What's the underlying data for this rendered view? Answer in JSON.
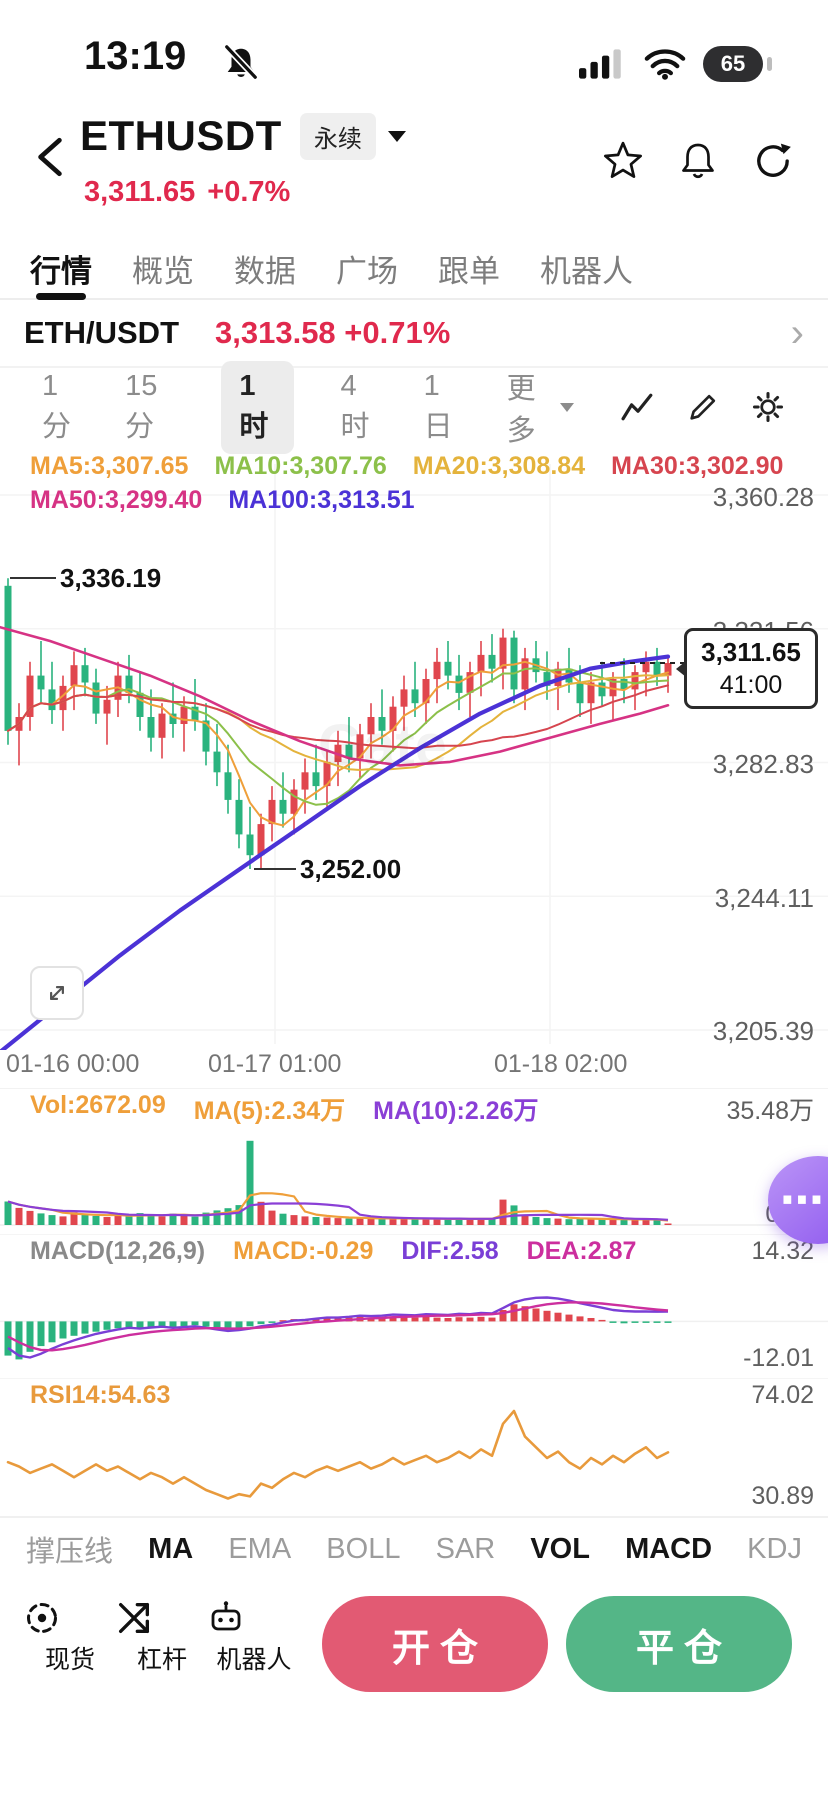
{
  "status_bar": {
    "time": "13:19",
    "battery_level": "65"
  },
  "header": {
    "symbol": "ETHUSDT",
    "contract_badge": "永续",
    "price": "3,311.65",
    "change": "+0.7%"
  },
  "nav_tabs": [
    {
      "label": "行情",
      "active": true
    },
    {
      "label": "概览"
    },
    {
      "label": "数据"
    },
    {
      "label": "广场"
    },
    {
      "label": "跟单"
    },
    {
      "label": "机器人"
    }
  ],
  "ticker": {
    "pair": "ETH/USDT",
    "price": "3,313.58",
    "change": "+0.71%"
  },
  "timeframe_bar": {
    "options": [
      {
        "label": "1分"
      },
      {
        "label": "15分"
      },
      {
        "label": "1时",
        "active": true
      },
      {
        "label": "4时"
      },
      {
        "label": "1日"
      }
    ],
    "more": "更多"
  },
  "ma_labels": {
    "row1": [
      {
        "text": "MA5:3,307.65",
        "color": "#ef9f3a"
      },
      {
        "text": "MA10:3,307.76",
        "color": "#8cc04a"
      },
      {
        "text": "MA20:3,308.84",
        "color": "#e4b33c"
      },
      {
        "text": "MA30:3,302.90",
        "color": "#d6454f"
      }
    ],
    "row2": [
      {
        "text": "MA50:3,299.40",
        "color": "#d63384"
      },
      {
        "text": "MA100:3,313.51",
        "color": "#4b32d6"
      }
    ]
  },
  "price_axis": [
    "3,360.28",
    "3,321.56",
    "3,282.83",
    "3,244.11",
    "3,205.39"
  ],
  "price_tag": {
    "price": "3,311.65",
    "countdown": "41:00"
  },
  "annotations": {
    "high": "3,336.19",
    "low": "3,252.00"
  },
  "x_axis": [
    "01-16 00:00",
    "01-17 01:00",
    "01-18 02:00"
  ],
  "watermark": "Gate",
  "volume_pane": {
    "vol_label": "Vol:2672.09",
    "ma5_label": "MA(5):2.34万",
    "ma10_label": "MA(10):2.26万",
    "max_label": "35.48万",
    "min_label": "0.00"
  },
  "macd_pane": {
    "title": "MACD(12,26,9)",
    "macd_label": "MACD:-0.29",
    "dif_label": "DIF:2.58",
    "dea_label": "DEA:2.87",
    "max_label": "14.32",
    "min_label": "-12.01"
  },
  "rsi_pane": {
    "label": "RSI14:54.63",
    "max_label": "74.02",
    "min_label": "30.89"
  },
  "indicator_tabs": [
    {
      "label": "撑压线"
    },
    {
      "label": "MA",
      "active": true
    },
    {
      "label": "EMA"
    },
    {
      "label": "BOLL"
    },
    {
      "label": "SAR"
    },
    {
      "label": "VOL",
      "active": true
    },
    {
      "label": "MACD",
      "active": true
    },
    {
      "label": "KDJ"
    }
  ],
  "bottom_bar": {
    "items": [
      {
        "label": "现货"
      },
      {
        "label": "杠杆"
      },
      {
        "label": "机器人"
      }
    ],
    "open_label": "开仓",
    "close_label": "平仓"
  },
  "colors": {
    "up": "#e0464e",
    "down": "#2ab37e",
    "price_red": "#e0294d",
    "ma5": "#ef9f3a",
    "ma10": "#8cc04a",
    "ma20": "#e4b33c",
    "ma30": "#d6454f",
    "ma50": "#d63384",
    "ma100": "#4b32d6",
    "vol_ma5": "#ef9f3a",
    "vol_ma10": "#8a3fd6",
    "dif": "#7a3fd6",
    "dea": "#cc2f9e",
    "rsi": "#e89a3c"
  },
  "chart_data": {
    "type": "candlestick",
    "timeframe": "1h",
    "last_price": 3311.65,
    "y_axis": [
      3360.28,
      3321.56,
      3282.83,
      3244.11,
      3205.39
    ],
    "x_labels": [
      "01-16 00:00",
      "01-17 01:00",
      "01-18 02:00"
    ],
    "candles": [
      [
        3334,
        3336.19,
        3288,
        3292
      ],
      [
        3292,
        3300,
        3282,
        3296
      ],
      [
        3296,
        3312,
        3292,
        3308
      ],
      [
        3308,
        3318,
        3300,
        3304
      ],
      [
        3304,
        3312,
        3294,
        3298
      ],
      [
        3298,
        3308,
        3292,
        3305
      ],
      [
        3305,
        3315,
        3298,
        3311
      ],
      [
        3311,
        3316,
        3302,
        3306
      ],
      [
        3306,
        3310,
        3294,
        3297
      ],
      [
        3297,
        3305,
        3288,
        3301
      ],
      [
        3301,
        3312,
        3296,
        3308
      ],
      [
        3308,
        3314,
        3300,
        3303
      ],
      [
        3303,
        3309,
        3292,
        3296
      ],
      [
        3296,
        3304,
        3286,
        3290
      ],
      [
        3290,
        3300,
        3284,
        3297
      ],
      [
        3297,
        3306,
        3290,
        3294
      ],
      [
        3294,
        3302,
        3286,
        3299
      ],
      [
        3299,
        3307,
        3292,
        3295
      ],
      [
        3295,
        3300,
        3282,
        3286
      ],
      [
        3286,
        3294,
        3276,
        3280
      ],
      [
        3280,
        3288,
        3268,
        3272
      ],
      [
        3272,
        3278,
        3258,
        3262
      ],
      [
        3262,
        3270,
        3252,
        3256
      ],
      [
        3256,
        3268,
        3252,
        3265
      ],
      [
        3265,
        3276,
        3260,
        3272
      ],
      [
        3272,
        3280,
        3264,
        3268
      ],
      [
        3268,
        3278,
        3262,
        3275
      ],
      [
        3275,
        3284,
        3268,
        3280
      ],
      [
        3280,
        3288,
        3272,
        3276
      ],
      [
        3276,
        3286,
        3270,
        3283
      ],
      [
        3283,
        3292,
        3276,
        3288
      ],
      [
        3288,
        3296,
        3280,
        3284
      ],
      [
        3284,
        3294,
        3278,
        3291
      ],
      [
        3291,
        3300,
        3284,
        3296
      ],
      [
        3296,
        3304,
        3288,
        3292
      ],
      [
        3292,
        3302,
        3286,
        3299
      ],
      [
        3299,
        3308,
        3292,
        3304
      ],
      [
        3304,
        3312,
        3296,
        3300
      ],
      [
        3300,
        3310,
        3294,
        3307
      ],
      [
        3307,
        3316,
        3300,
        3312
      ],
      [
        3312,
        3318,
        3304,
        3308
      ],
      [
        3308,
        3314,
        3298,
        3303
      ],
      [
        3303,
        3312,
        3296,
        3309
      ],
      [
        3309,
        3318,
        3302,
        3314
      ],
      [
        3314,
        3320,
        3306,
        3310
      ],
      [
        3310,
        3321.56,
        3304,
        3319
      ],
      [
        3319,
        3321,
        3300,
        3304
      ],
      [
        3304,
        3316,
        3298,
        3313
      ],
      [
        3313,
        3318,
        3306,
        3309
      ],
      [
        3309,
        3315,
        3301,
        3305
      ],
      [
        3305,
        3312,
        3298,
        3310
      ],
      [
        3310,
        3316,
        3303,
        3306
      ],
      [
        3306,
        3311,
        3296,
        3300
      ],
      [
        3300,
        3309,
        3294,
        3306
      ],
      [
        3306,
        3312,
        3299,
        3302
      ],
      [
        3302,
        3309,
        3295,
        3307
      ],
      [
        3307,
        3313,
        3300,
        3304
      ],
      [
        3304,
        3311,
        3298,
        3309
      ],
      [
        3309,
        3315,
        3302,
        3312
      ],
      [
        3312,
        3316,
        3305,
        3308
      ],
      [
        3308,
        3314,
        3303,
        3311.65
      ]
    ],
    "volumes": [
      8.5,
      6.2,
      5.1,
      4.2,
      3.6,
      3.1,
      4.6,
      3.9,
      3.3,
      2.9,
      3.6,
      3.1,
      4.3,
      3.7,
      3.1,
      4.1,
      3.5,
      3.0,
      4.5,
      5.3,
      6.1,
      7.2,
      30.5,
      8.4,
      5.2,
      4.1,
      3.6,
      3.1,
      2.9,
      2.7,
      2.5,
      2.3,
      2.6,
      2.4,
      2.2,
      2.5,
      2.3,
      2.1,
      2.4,
      2.2,
      2.0,
      2.3,
      2.1,
      2.5,
      2.2,
      9.2,
      7.1,
      3.6,
      2.9,
      2.5,
      2.3,
      2.1,
      2.4,
      2.2,
      2.0,
      2.1,
      1.9,
      2.0,
      2.1,
      1.8,
      0.27
    ],
    "vol_max": 35.48,
    "ma50_points": [
      [
        0,
        3322
      ],
      [
        50,
        3318
      ],
      [
        100,
        3313
      ],
      [
        150,
        3308
      ],
      [
        200,
        3302
      ],
      [
        250,
        3295
      ],
      [
        300,
        3289
      ],
      [
        350,
        3284
      ],
      [
        400,
        3282
      ],
      [
        450,
        3283
      ],
      [
        500,
        3286
      ],
      [
        550,
        3290
      ],
      [
        600,
        3294
      ],
      [
        640,
        3297
      ],
      [
        668,
        3299.4
      ]
    ],
    "ma100_points": [
      [
        0,
        3199
      ],
      [
        60,
        3213
      ],
      [
        120,
        3227
      ],
      [
        180,
        3240
      ],
      [
        240,
        3252
      ],
      [
        300,
        3264
      ],
      [
        360,
        3276
      ],
      [
        420,
        3287
      ],
      [
        480,
        3297
      ],
      [
        540,
        3305
      ],
      [
        590,
        3310
      ],
      [
        630,
        3312
      ],
      [
        668,
        3313.5
      ]
    ],
    "macd": {
      "max": 14.32,
      "min": -12.01,
      "hist": [
        -9,
        -10,
        -8,
        -6.5,
        -5.5,
        -4.5,
        -3.8,
        -3.2,
        -2.7,
        -2.2,
        -1.8,
        -1.5,
        -1.8,
        -1.5,
        -1.2,
        -1.5,
        -1.2,
        -1.0,
        -1.4,
        -1.8,
        -2.2,
        -1.8,
        -1.3,
        -0.7,
        -0.4,
        0.3,
        0.6,
        0.5,
        0.8,
        1.0,
        0.8,
        1.0,
        1.2,
        1.0,
        1.1,
        1.3,
        1.1,
        1.0,
        1.2,
        1.0,
        0.9,
        1.1,
        1.0,
        1.2,
        1.0,
        3.0,
        4.5,
        4.0,
        3.4,
        2.8,
        2.3,
        1.8,
        1.3,
        0.9,
        0.4,
        -0.3,
        -0.5,
        -0.4,
        -0.3,
        -0.3,
        -0.29
      ],
      "dif": [
        -7,
        -9,
        -9.5,
        -8.5,
        -7.2,
        -6.0,
        -5.0,
        -4.1,
        -3.3,
        -2.7,
        -2.1,
        -1.7,
        -1.9,
        -1.6,
        -1.4,
        -1.7,
        -1.5,
        -1.3,
        -1.7,
        -2.1,
        -2.5,
        -2.3,
        -1.9,
        -1.3,
        -0.9,
        -0.3,
        0.2,
        0.4,
        0.7,
        1.0,
        1.0,
        1.2,
        1.5,
        1.4,
        1.5,
        1.8,
        1.7,
        1.6,
        1.9,
        1.8,
        1.7,
        2.0,
        1.9,
        2.2,
        2.1,
        3.5,
        5.0,
        5.8,
        6.2,
        6.3,
        6.0,
        5.5,
        4.8,
        4.2,
        3.6,
        3.0,
        2.7,
        2.6,
        2.6,
        2.55,
        2.58
      ],
      "dea": [
        -4,
        -5.5,
        -6.8,
        -7.5,
        -7.6,
        -7.3,
        -6.8,
        -6.2,
        -5.5,
        -4.8,
        -4.2,
        -3.6,
        -3.2,
        -2.8,
        -2.5,
        -2.3,
        -2.1,
        -1.9,
        -1.8,
        -1.8,
        -1.9,
        -1.9,
        -1.8,
        -1.6,
        -1.4,
        -1.1,
        -0.8,
        -0.5,
        -0.2,
        0.0,
        0.2,
        0.4,
        0.6,
        0.8,
        0.9,
        1.1,
        1.2,
        1.3,
        1.4,
        1.5,
        1.5,
        1.6,
        1.7,
        1.8,
        1.9,
        2.2,
        2.8,
        3.4,
        4.0,
        4.5,
        4.8,
        5.0,
        5.0,
        4.9,
        4.7,
        4.4,
        4.1,
        3.7,
        3.4,
        3.1,
        2.87
      ]
    },
    "rsi": {
      "max": 74.02,
      "min": 30.89,
      "values": [
        50,
        48,
        45,
        47,
        49,
        46,
        43,
        46,
        49,
        46,
        48,
        45,
        42,
        45,
        43,
        40,
        43,
        40,
        37,
        35,
        33,
        35,
        34,
        40,
        38,
        42,
        45,
        43,
        46,
        48,
        46,
        48,
        50,
        47,
        49,
        52,
        49,
        51,
        53,
        50,
        52,
        55,
        52,
        56,
        53,
        68,
        74,
        62,
        57,
        52,
        55,
        50,
        47,
        52,
        49,
        53,
        50,
        54,
        57,
        52,
        54.63
      ]
    }
  }
}
